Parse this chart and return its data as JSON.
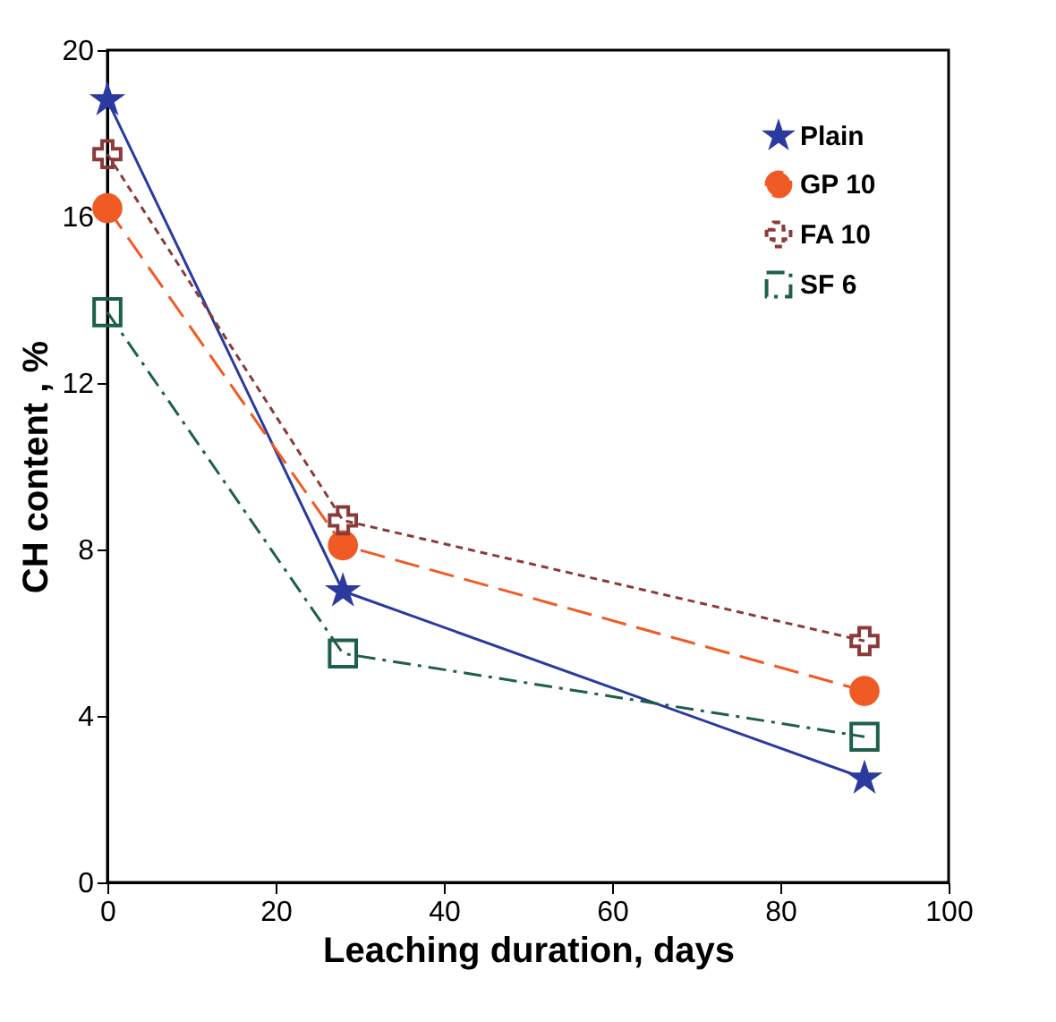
{
  "chart_data": {
    "type": "line",
    "xlabel": "Leaching duration, days",
    "ylabel": "CH content , %",
    "x": [
      0,
      28,
      90
    ],
    "series": [
      {
        "name": "Plain",
        "color": "#2b3a9e",
        "values": [
          18.8,
          7.0,
          2.5
        ],
        "marker": "star",
        "line_style": "solid"
      },
      {
        "name": "GP 10",
        "color": "#f05a24",
        "values": [
          16.2,
          8.1,
          4.6
        ],
        "marker": "circle",
        "line_style": "dashed"
      },
      {
        "name": "FA 10",
        "color": "#8b3a3a",
        "values": [
          17.5,
          8.7,
          5.8
        ],
        "marker": "cross",
        "line_style": "dotted"
      },
      {
        "name": "SF 6",
        "color": "#1e5f4a",
        "values": [
          13.7,
          5.5,
          3.5
        ],
        "marker": "square",
        "line_style": "dashdot"
      }
    ],
    "xlim": [
      0,
      100
    ],
    "xticks": [
      0,
      20,
      40,
      60,
      80,
      100
    ],
    "ylim": [
      0,
      20
    ],
    "yticks": [
      0,
      4,
      8,
      12,
      16,
      20
    ],
    "grid": false,
    "legend": "top right"
  }
}
